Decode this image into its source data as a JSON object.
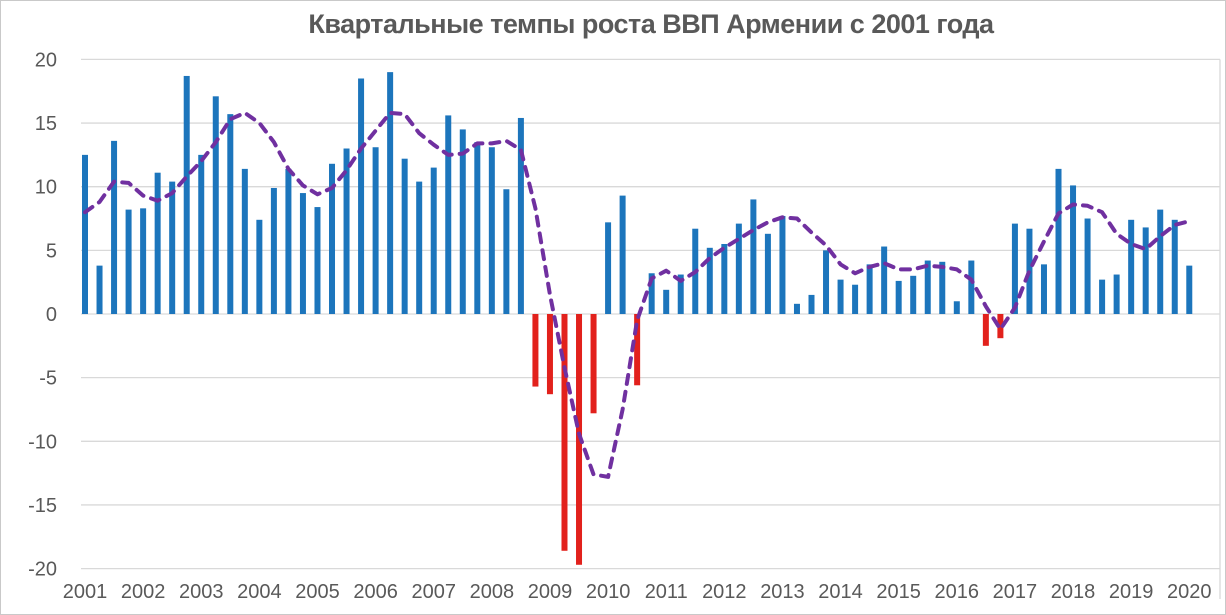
{
  "chart_data": {
    "type": "bar",
    "title": "Квартальные темпы роста ВВП Армении с 2001 года",
    "x_years": [
      "2001",
      "2002",
      "2003",
      "2004",
      "2005",
      "2006",
      "2007",
      "2008",
      "2009",
      "2010",
      "2011",
      "2012",
      "2013",
      "2014",
      "2015",
      "2016",
      "2017",
      "2018",
      "2019",
      "2020"
    ],
    "quarters_per_year": 4,
    "xlabel": "",
    "ylabel": "",
    "ylim": [
      -20,
      20
    ],
    "yticks": [
      20,
      15,
      10,
      5,
      0,
      -5,
      -10,
      -15,
      -20
    ],
    "grid": true,
    "legend": "none",
    "bars": {
      "description": "quarterly GDP growth, %, 2001Q1 - 2020Q1",
      "positive_color": "#1C75BC",
      "negative_color": "#E2211C",
      "values": [
        12.5,
        3.8,
        13.6,
        8.2,
        8.3,
        11.1,
        10.4,
        18.7,
        12.5,
        17.1,
        15.7,
        11.4,
        7.4,
        9.9,
        11.4,
        9.5,
        8.4,
        11.8,
        13.0,
        18.5,
        13.1,
        19.0,
        12.2,
        10.4,
        11.5,
        15.6,
        14.5,
        13.5,
        13.1,
        9.8,
        15.4,
        -5.7,
        -6.3,
        -18.6,
        -19.7,
        -7.8,
        7.2,
        9.3,
        -5.6,
        3.2,
        1.9,
        3.1,
        6.7,
        5.2,
        5.5,
        7.1,
        9.0,
        6.3,
        7.7,
        0.8,
        1.5,
        5.0,
        2.7,
        2.3,
        3.9,
        5.3,
        2.6,
        3.0,
        4.2,
        4.1,
        1.0,
        4.2,
        -2.5,
        -1.9,
        7.1,
        6.7,
        3.9,
        11.4,
        10.1,
        7.5,
        2.7,
        3.1,
        7.4,
        6.8,
        8.2,
        7.4,
        3.8
      ]
    },
    "trend": {
      "description": "dashed moving-average trend line",
      "color": "#7030A0",
      "style": "dashed",
      "values": [
        8.0,
        8.8,
        10.4,
        10.3,
        9.3,
        8.9,
        9.5,
        10.8,
        12.0,
        13.5,
        15.3,
        15.8,
        15.0,
        13.5,
        11.4,
        10.1,
        9.4,
        9.9,
        11.3,
        13.0,
        14.4,
        15.8,
        15.7,
        14.2,
        13.3,
        12.5,
        12.6,
        13.4,
        13.4,
        13.6,
        12.9,
        8.3,
        1.5,
        -4.2,
        -9.4,
        -12.6,
        -12.8,
        -7.5,
        -0.5,
        2.8,
        3.4,
        2.6,
        3.3,
        4.4,
        5.2,
        5.9,
        6.6,
        7.2,
        7.6,
        7.5,
        6.4,
        5.4,
        3.9,
        3.2,
        3.7,
        4.0,
        3.5,
        3.5,
        3.8,
        3.7,
        3.5,
        2.7,
        0.6,
        -1.2,
        0.5,
        3.4,
        5.7,
        7.9,
        8.6,
        8.5,
        8.0,
        6.3,
        5.5,
        5.1,
        6.1,
        7.0,
        7.3
      ]
    },
    "gridline_color": "#D9D9D9",
    "text_color": "#595959"
  }
}
